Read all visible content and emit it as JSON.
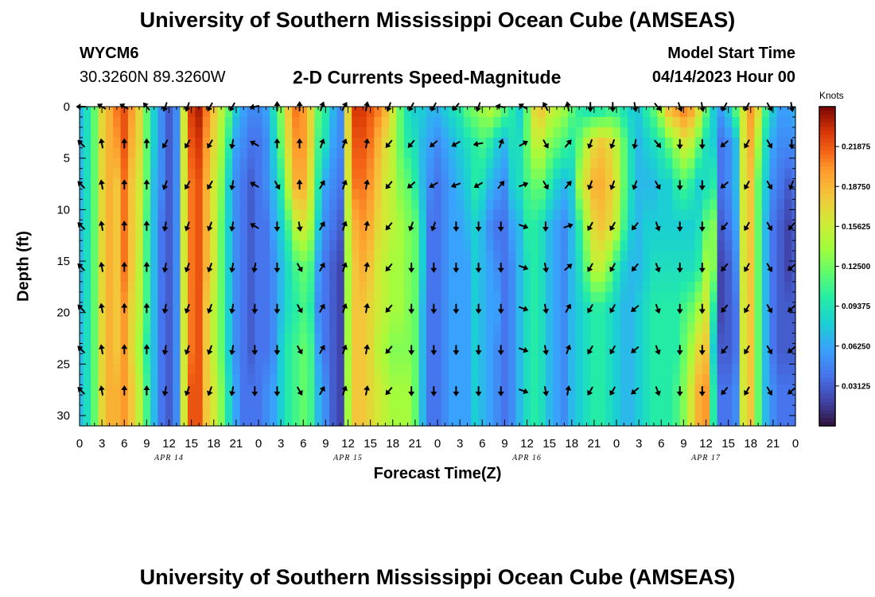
{
  "header": {
    "title": "University of Southern Mississippi Ocean Cube (AMSEAS)",
    "station": "WYCM6",
    "coordinates": "30.3260N  89.3260W",
    "subtitle": "2-D Currents Speed-Magnitude",
    "model_start_label": "Model Start Time",
    "model_start_value": "04/14/2023 Hour 00"
  },
  "footer": {
    "title": "University of Southern Mississippi Ocean Cube (AMSEAS)"
  },
  "chart_data": {
    "type": "heatmap",
    "title": "2-D Currents Speed-Magnitude",
    "xlabel": "Forecast Time(Z)",
    "ylabel": "Depth (ft)",
    "x_ticks": [
      "0",
      "3",
      "6",
      "9",
      "12",
      "15",
      "18",
      "21",
      "0",
      "3",
      "6",
      "9",
      "12",
      "15",
      "18",
      "21",
      "0",
      "3",
      "6",
      "9",
      "12",
      "15",
      "18",
      "21",
      "0",
      "3",
      "6",
      "9",
      "12",
      "15",
      "18",
      "21",
      "0"
    ],
    "date_labels": [
      {
        "label": "APR 14",
        "hour": 12
      },
      {
        "label": "APR 15",
        "hour": 36
      },
      {
        "label": "APR 16",
        "hour": 60
      },
      {
        "label": "APR 17",
        "hour": 84
      }
    ],
    "x_range_hours": [
      0,
      96
    ],
    "depth_range_ft": [
      0,
      31
    ],
    "y_ticks": [
      0,
      5,
      10,
      15,
      20,
      25,
      30
    ],
    "colorbar": {
      "unit": "Knots",
      "min": 0.0,
      "max": 0.25,
      "ticks": [
        "0.21875",
        "0.18750",
        "0.15625",
        "0.12500",
        "0.09375",
        "0.06250",
        "0.03125"
      ]
    },
    "time_hours": [
      0,
      1,
      2,
      3,
      4,
      5,
      6,
      7,
      8,
      9,
      10,
      11,
      12,
      13,
      14,
      15,
      16,
      17,
      18,
      19,
      20,
      21,
      22,
      23,
      24,
      25,
      26,
      27,
      28,
      29,
      30,
      31,
      32,
      33,
      34,
      35,
      36,
      37,
      38,
      39,
      40,
      41,
      42,
      43,
      44,
      45,
      46,
      47,
      48,
      49,
      50,
      51,
      52,
      53,
      54,
      55,
      56,
      57,
      58,
      59,
      60,
      61,
      62,
      63,
      64,
      65,
      66,
      67,
      68,
      69,
      70,
      71,
      72,
      73,
      74,
      75,
      76,
      77,
      78,
      79,
      80,
      81,
      82,
      83,
      84,
      85,
      86,
      87,
      88,
      89,
      90,
      91,
      92,
      93,
      94,
      95,
      96
    ],
    "depth_levels_ft": [
      0,
      3.6,
      7.6,
      11.6,
      15.6,
      19.6,
      23.6,
      27.6
    ],
    "speed_knots": [
      [
        0.07,
        0.07,
        0.07,
        0.07,
        0.07,
        0.07,
        0.07,
        0.07
      ],
      [
        0.09,
        0.09,
        0.09,
        0.09,
        0.09,
        0.09,
        0.09,
        0.09
      ],
      [
        0.12,
        0.12,
        0.12,
        0.12,
        0.12,
        0.12,
        0.12,
        0.12
      ],
      [
        0.17,
        0.17,
        0.17,
        0.17,
        0.17,
        0.17,
        0.17,
        0.17
      ],
      [
        0.19,
        0.19,
        0.19,
        0.19,
        0.19,
        0.19,
        0.19,
        0.19
      ],
      [
        0.21,
        0.2,
        0.18,
        0.18,
        0.18,
        0.18,
        0.18,
        0.19
      ],
      [
        0.22,
        0.22,
        0.21,
        0.21,
        0.21,
        0.2,
        0.2,
        0.2
      ],
      [
        0.2,
        0.19,
        0.18,
        0.18,
        0.18,
        0.17,
        0.17,
        0.18
      ],
      [
        0.17,
        0.17,
        0.16,
        0.16,
        0.15,
        0.15,
        0.14,
        0.15
      ],
      [
        0.12,
        0.12,
        0.12,
        0.11,
        0.11,
        0.11,
        0.1,
        0.11
      ],
      [
        0.08,
        0.08,
        0.07,
        0.07,
        0.07,
        0.07,
        0.07,
        0.07
      ],
      [
        0.05,
        0.05,
        0.05,
        0.04,
        0.04,
        0.04,
        0.04,
        0.04
      ],
      [
        0.03,
        0.03,
        0.03,
        0.03,
        0.03,
        0.03,
        0.03,
        0.03
      ],
      [
        0.05,
        0.05,
        0.05,
        0.05,
        0.05,
        0.05,
        0.05,
        0.05
      ],
      [
        0.16,
        0.16,
        0.16,
        0.16,
        0.16,
        0.16,
        0.16,
        0.16
      ],
      [
        0.23,
        0.22,
        0.21,
        0.21,
        0.21,
        0.21,
        0.21,
        0.22
      ],
      [
        0.24,
        0.23,
        0.22,
        0.22,
        0.22,
        0.22,
        0.22,
        0.22
      ],
      [
        0.21,
        0.2,
        0.19,
        0.19,
        0.19,
        0.18,
        0.18,
        0.18
      ],
      [
        0.18,
        0.17,
        0.16,
        0.16,
        0.16,
        0.15,
        0.15,
        0.16
      ],
      [
        0.15,
        0.14,
        0.13,
        0.12,
        0.12,
        0.12,
        0.12,
        0.13
      ],
      [
        0.12,
        0.1,
        0.08,
        0.08,
        0.08,
        0.08,
        0.08,
        0.09
      ],
      [
        0.08,
        0.06,
        0.05,
        0.05,
        0.05,
        0.05,
        0.05,
        0.06
      ],
      [
        0.06,
        0.05,
        0.04,
        0.04,
        0.04,
        0.04,
        0.04,
        0.04
      ],
      [
        0.05,
        0.04,
        0.03,
        0.03,
        0.03,
        0.03,
        0.03,
        0.04
      ],
      [
        0.05,
        0.04,
        0.04,
        0.04,
        0.04,
        0.04,
        0.04,
        0.04
      ],
      [
        0.06,
        0.05,
        0.05,
        0.04,
        0.04,
        0.04,
        0.04,
        0.05
      ],
      [
        0.09,
        0.08,
        0.07,
        0.06,
        0.05,
        0.05,
        0.05,
        0.06
      ],
      [
        0.13,
        0.12,
        0.1,
        0.08,
        0.07,
        0.07,
        0.08,
        0.08
      ],
      [
        0.18,
        0.17,
        0.15,
        0.11,
        0.09,
        0.09,
        0.1,
        0.1
      ],
      [
        0.21,
        0.2,
        0.19,
        0.15,
        0.11,
        0.1,
        0.11,
        0.11
      ],
      [
        0.2,
        0.2,
        0.19,
        0.16,
        0.12,
        0.11,
        0.12,
        0.12
      ],
      [
        0.17,
        0.17,
        0.16,
        0.14,
        0.11,
        0.1,
        0.11,
        0.11
      ],
      [
        0.12,
        0.11,
        0.1,
        0.08,
        0.06,
        0.05,
        0.06,
        0.07
      ],
      [
        0.1,
        0.09,
        0.06,
        0.05,
        0.04,
        0.04,
        0.04,
        0.05
      ],
      [
        0.07,
        0.06,
        0.05,
        0.04,
        0.03,
        0.03,
        0.03,
        0.03
      ],
      [
        0.05,
        0.05,
        0.04,
        0.03,
        0.02,
        0.02,
        0.02,
        0.02
      ],
      [
        0.17,
        0.17,
        0.16,
        0.15,
        0.14,
        0.14,
        0.14,
        0.14
      ],
      [
        0.23,
        0.22,
        0.21,
        0.19,
        0.18,
        0.18,
        0.18,
        0.18
      ],
      [
        0.23,
        0.22,
        0.21,
        0.2,
        0.19,
        0.18,
        0.18,
        0.18
      ],
      [
        0.22,
        0.21,
        0.2,
        0.19,
        0.18,
        0.17,
        0.17,
        0.17
      ],
      [
        0.21,
        0.19,
        0.18,
        0.17,
        0.16,
        0.16,
        0.15,
        0.16
      ],
      [
        0.19,
        0.17,
        0.16,
        0.16,
        0.15,
        0.15,
        0.14,
        0.15
      ],
      [
        0.16,
        0.15,
        0.15,
        0.15,
        0.14,
        0.14,
        0.13,
        0.14
      ],
      [
        0.12,
        0.12,
        0.13,
        0.14,
        0.14,
        0.14,
        0.13,
        0.14
      ],
      [
        0.09,
        0.1,
        0.12,
        0.13,
        0.13,
        0.13,
        0.13,
        0.14
      ],
      [
        0.08,
        0.09,
        0.1,
        0.12,
        0.12,
        0.12,
        0.12,
        0.12
      ],
      [
        0.08,
        0.07,
        0.07,
        0.08,
        0.08,
        0.07,
        0.07,
        0.07
      ],
      [
        0.07,
        0.06,
        0.05,
        0.04,
        0.04,
        0.04,
        0.04,
        0.04
      ],
      [
        0.07,
        0.05,
        0.04,
        0.04,
        0.04,
        0.04,
        0.04,
        0.04
      ],
      [
        0.08,
        0.06,
        0.05,
        0.05,
        0.05,
        0.05,
        0.05,
        0.05
      ],
      [
        0.09,
        0.07,
        0.06,
        0.06,
        0.06,
        0.06,
        0.06,
        0.06
      ],
      [
        0.1,
        0.08,
        0.07,
        0.06,
        0.06,
        0.06,
        0.06,
        0.06
      ],
      [
        0.12,
        0.09,
        0.08,
        0.07,
        0.06,
        0.06,
        0.06,
        0.06
      ],
      [
        0.13,
        0.1,
        0.1,
        0.08,
        0.08,
        0.08,
        0.08,
        0.08
      ],
      [
        0.14,
        0.11,
        0.09,
        0.07,
        0.07,
        0.07,
        0.07,
        0.07
      ],
      [
        0.15,
        0.1,
        0.07,
        0.05,
        0.06,
        0.06,
        0.06,
        0.06
      ],
      [
        0.14,
        0.08,
        0.06,
        0.04,
        0.05,
        0.06,
        0.05,
        0.05
      ],
      [
        0.12,
        0.07,
        0.05,
        0.04,
        0.04,
        0.04,
        0.04,
        0.04
      ],
      [
        0.1,
        0.09,
        0.08,
        0.06,
        0.05,
        0.05,
        0.05,
        0.05
      ],
      [
        0.08,
        0.09,
        0.09,
        0.07,
        0.07,
        0.07,
        0.07,
        0.07
      ],
      [
        0.12,
        0.12,
        0.11,
        0.1,
        0.09,
        0.09,
        0.09,
        0.09
      ],
      [
        0.17,
        0.15,
        0.12,
        0.1,
        0.1,
        0.1,
        0.1,
        0.1
      ],
      [
        0.18,
        0.15,
        0.12,
        0.09,
        0.09,
        0.09,
        0.09,
        0.09
      ],
      [
        0.16,
        0.13,
        0.1,
        0.07,
        0.07,
        0.07,
        0.07,
        0.07
      ],
      [
        0.15,
        0.12,
        0.08,
        0.06,
        0.06,
        0.06,
        0.06,
        0.06
      ],
      [
        0.14,
        0.11,
        0.07,
        0.05,
        0.05,
        0.05,
        0.05,
        0.05
      ],
      [
        0.12,
        0.1,
        0.08,
        0.07,
        0.07,
        0.07,
        0.07,
        0.07
      ],
      [
        0.1,
        0.12,
        0.14,
        0.1,
        0.09,
        0.08,
        0.08,
        0.08
      ],
      [
        0.09,
        0.15,
        0.17,
        0.14,
        0.12,
        0.09,
        0.09,
        0.09
      ],
      [
        0.09,
        0.17,
        0.19,
        0.17,
        0.15,
        0.1,
        0.1,
        0.1
      ],
      [
        0.09,
        0.18,
        0.19,
        0.18,
        0.15,
        0.1,
        0.1,
        0.1
      ],
      [
        0.1,
        0.17,
        0.18,
        0.17,
        0.13,
        0.09,
        0.09,
        0.09
      ],
      [
        0.1,
        0.15,
        0.16,
        0.15,
        0.1,
        0.08,
        0.08,
        0.08
      ],
      [
        0.09,
        0.12,
        0.12,
        0.11,
        0.08,
        0.07,
        0.07,
        0.07
      ],
      [
        0.08,
        0.09,
        0.09,
        0.08,
        0.07,
        0.07,
        0.07,
        0.07
      ],
      [
        0.08,
        0.07,
        0.07,
        0.07,
        0.07,
        0.08,
        0.08,
        0.08
      ],
      [
        0.1,
        0.08,
        0.07,
        0.08,
        0.08,
        0.09,
        0.09,
        0.09
      ],
      [
        0.12,
        0.09,
        0.07,
        0.08,
        0.09,
        0.1,
        0.1,
        0.1
      ],
      [
        0.15,
        0.1,
        0.08,
        0.08,
        0.09,
        0.1,
        0.1,
        0.1
      ],
      [
        0.19,
        0.12,
        0.08,
        0.08,
        0.09,
        0.1,
        0.1,
        0.1
      ],
      [
        0.2,
        0.14,
        0.1,
        0.08,
        0.09,
        0.1,
        0.1,
        0.11
      ],
      [
        0.21,
        0.16,
        0.11,
        0.08,
        0.09,
        0.11,
        0.12,
        0.13
      ],
      [
        0.2,
        0.15,
        0.1,
        0.08,
        0.09,
        0.12,
        0.14,
        0.16
      ],
      [
        0.17,
        0.12,
        0.08,
        0.09,
        0.1,
        0.14,
        0.17,
        0.19
      ],
      [
        0.12,
        0.09,
        0.09,
        0.12,
        0.14,
        0.16,
        0.18,
        0.2
      ],
      [
        0.08,
        0.08,
        0.1,
        0.13,
        0.13,
        0.1,
        0.08,
        0.1
      ],
      [
        0.06,
        0.04,
        0.04,
        0.03,
        0.02,
        0.02,
        0.03,
        0.04
      ],
      [
        0.08,
        0.05,
        0.05,
        0.04,
        0.03,
        0.03,
        0.03,
        0.04
      ],
      [
        0.12,
        0.07,
        0.07,
        0.06,
        0.05,
        0.04,
        0.04,
        0.05
      ],
      [
        0.16,
        0.16,
        0.16,
        0.16,
        0.16,
        0.16,
        0.16,
        0.16
      ],
      [
        0.2,
        0.19,
        0.18,
        0.18,
        0.18,
        0.18,
        0.18,
        0.18
      ],
      [
        0.17,
        0.14,
        0.12,
        0.12,
        0.12,
        0.12,
        0.12,
        0.12
      ],
      [
        0.11,
        0.09,
        0.08,
        0.07,
        0.07,
        0.07,
        0.07,
        0.07
      ],
      [
        0.08,
        0.06,
        0.05,
        0.04,
        0.04,
        0.04,
        0.04,
        0.05
      ],
      [
        0.06,
        0.05,
        0.04,
        0.03,
        0.03,
        0.03,
        0.03,
        0.04
      ],
      [
        0.06,
        0.05,
        0.03,
        0.02,
        0.02,
        0.03,
        0.03,
        0.04
      ],
      [
        0.07,
        0.05,
        0.04,
        0.03,
        0.03,
        0.03,
        0.03,
        0.04
      ]
    ],
    "arrow_times_hours": [
      0.25,
      3,
      6,
      9,
      11.5,
      14.5,
      17.5,
      20.5,
      23.5,
      26.5,
      29.5,
      32.5,
      35.5,
      38.5,
      41.5,
      44.5,
      47.5,
      50.5,
      53.5,
      56.5,
      59.5,
      62.5,
      65.5,
      68.5,
      71.5,
      74.5,
      77.5,
      80.5,
      83.5,
      86.5,
      89.5,
      92.5,
      95.5
    ],
    "arrow_direction_deg": [
      [
        270,
        315,
        315,
        315,
        315,
        315,
        315,
        315
      ],
      [
        300,
        350,
        350,
        350,
        350,
        350,
        350,
        350
      ],
      [
        300,
        0,
        0,
        0,
        0,
        0,
        0,
        0
      ],
      [
        320,
        0,
        0,
        0,
        0,
        0,
        0,
        0
      ],
      [
        200,
        210,
        200,
        190,
        190,
        190,
        190,
        190
      ],
      [
        200,
        210,
        210,
        200,
        200,
        200,
        200,
        200
      ],
      [
        210,
        210,
        210,
        200,
        200,
        200,
        200,
        200
      ],
      [
        210,
        190,
        190,
        190,
        190,
        190,
        190,
        190
      ],
      [
        260,
        300,
        300,
        300,
        190,
        180,
        180,
        180
      ],
      [
        0,
        0,
        150,
        180,
        180,
        180,
        180,
        180
      ],
      [
        0,
        0,
        0,
        170,
        150,
        150,
        150,
        150
      ],
      [
        20,
        20,
        30,
        30,
        30,
        30,
        30,
        30
      ],
      [
        30,
        20,
        20,
        20,
        20,
        20,
        20,
        20
      ],
      [
        10,
        10,
        10,
        10,
        10,
        10,
        10,
        10
      ],
      [
        200,
        220,
        220,
        220,
        220,
        220,
        220,
        220
      ],
      [
        210,
        220,
        230,
        200,
        180,
        180,
        180,
        180
      ],
      [
        210,
        230,
        240,
        200,
        180,
        180,
        180,
        180
      ],
      [
        220,
        240,
        250,
        180,
        180,
        180,
        180,
        180
      ],
      [
        200,
        260,
        240,
        180,
        180,
        180,
        180,
        180
      ],
      [
        280,
        20,
        40,
        180,
        180,
        180,
        180,
        180
      ],
      [
        300,
        60,
        70,
        110,
        110,
        110,
        110,
        110
      ],
      [
        330,
        150,
        150,
        180,
        170,
        170,
        170,
        170
      ],
      [
        350,
        40,
        40,
        70,
        50,
        30,
        20,
        10
      ],
      [
        180,
        200,
        200,
        210,
        210,
        210,
        210,
        210
      ],
      [
        180,
        200,
        200,
        210,
        210,
        210,
        210,
        210
      ],
      [
        170,
        190,
        200,
        220,
        220,
        230,
        230,
        230
      ],
      [
        140,
        140,
        150,
        160,
        160,
        160,
        160,
        160
      ],
      [
        160,
        180,
        180,
        180,
        180,
        180,
        180,
        180
      ],
      [
        170,
        180,
        180,
        180,
        180,
        180,
        180,
        180
      ],
      [
        210,
        230,
        230,
        220,
        220,
        220,
        220,
        220
      ],
      [
        210,
        210,
        210,
        210,
        210,
        210,
        210,
        210
      ],
      [
        150,
        150,
        150,
        150,
        150,
        150,
        150,
        150
      ],
      [
        170,
        180,
        200,
        220,
        230,
        230,
        230,
        230
      ]
    ]
  }
}
